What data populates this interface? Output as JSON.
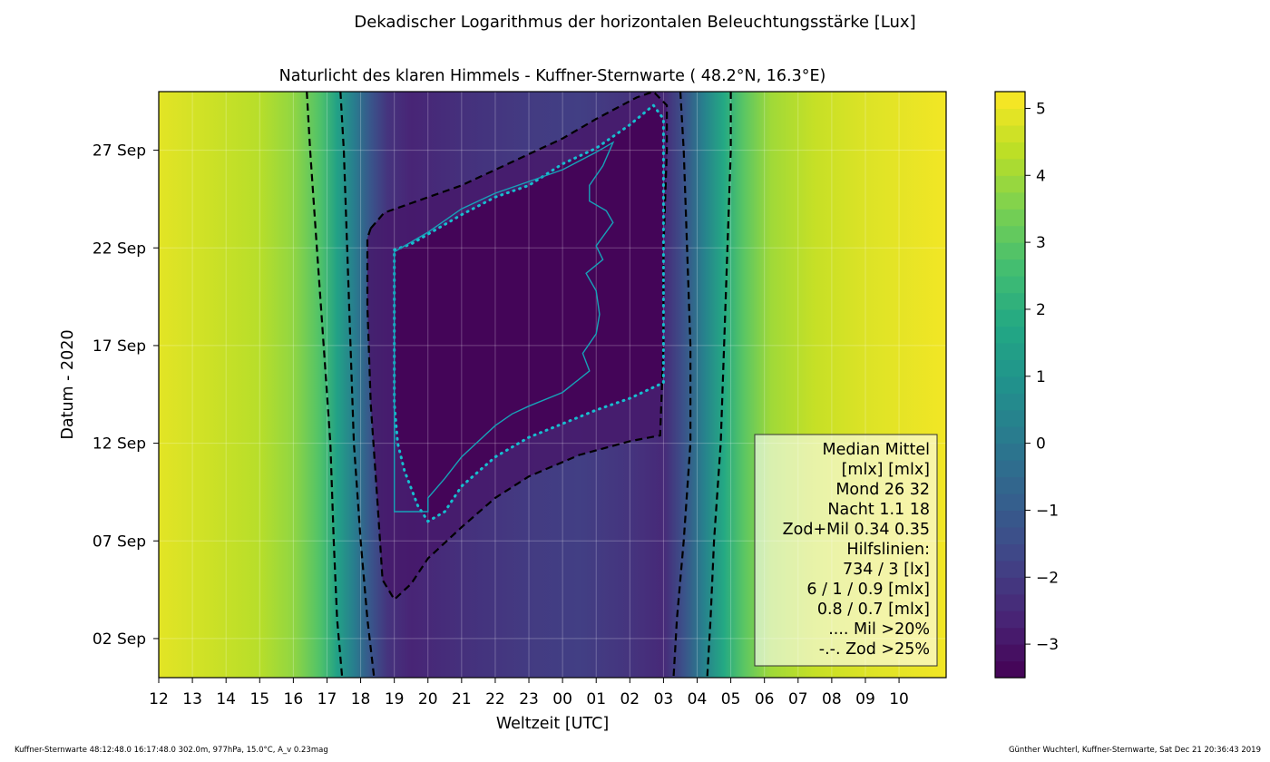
{
  "figure": {
    "suptitle": "Dekadischer Logarithmus der horizontalen Beleuchtungsstärke [Lux]",
    "footer_left": "Kuffner-Sternwarte 48:12:48.0 16:17:48.0 302.0m,  977hPa, 15.0°C, A_v 0.23mag",
    "footer_right": "Günther Wuchterl, Kuffner-Sternwarte, Sat Dec 21 20:36:43 2019"
  },
  "chart_data": {
    "type": "heatmap",
    "title": "Naturlicht des klaren Himmels - Kuffner-Sternwarte ( 48.2°N, 16.3°E)",
    "xlabel": "Weltzeit [UTC]",
    "ylabel": "Datum - 2020",
    "x_range_hours": [
      12,
      35.4
    ],
    "x_ticks": [
      {
        "label": "12",
        "h": 12
      },
      {
        "label": "13",
        "h": 13
      },
      {
        "label": "14",
        "h": 14
      },
      {
        "label": "15",
        "h": 15
      },
      {
        "label": "16",
        "h": 16
      },
      {
        "label": "17",
        "h": 17
      },
      {
        "label": "18",
        "h": 18
      },
      {
        "label": "19",
        "h": 19
      },
      {
        "label": "20",
        "h": 20
      },
      {
        "label": "21",
        "h": 21
      },
      {
        "label": "22",
        "h": 22
      },
      {
        "label": "23",
        "h": 23
      },
      {
        "label": "00",
        "h": 24
      },
      {
        "label": "01",
        "h": 25
      },
      {
        "label": "02",
        "h": 26
      },
      {
        "label": "03",
        "h": 27
      },
      {
        "label": "04",
        "h": 28
      },
      {
        "label": "05",
        "h": 29
      },
      {
        "label": "06",
        "h": 30
      },
      {
        "label": "07",
        "h": 31
      },
      {
        "label": "08",
        "h": 32
      },
      {
        "label": "09",
        "h": 33
      },
      {
        "label": "10",
        "h": 34
      }
    ],
    "y_range_day": [
      31.0,
      61.0
    ],
    "y_ticks": [
      {
        "label": "02 Sep",
        "d": 33
      },
      {
        "label": "07 Sep",
        "d": 38
      },
      {
        "label": "12 Sep",
        "d": 43
      },
      {
        "label": "17 Sep",
        "d": 48
      },
      {
        "label": "22 Sep",
        "d": 53
      },
      {
        "label": "27 Sep",
        "d": 58
      }
    ],
    "grid": true,
    "colormap": "viridis",
    "colorbar": {
      "range": [
        -3.5,
        5.25
      ],
      "ticks": [
        {
          "label": "5",
          "v": 5
        },
        {
          "label": "4",
          "v": 4
        },
        {
          "label": "3",
          "v": 3
        },
        {
          "label": "2",
          "v": 2
        },
        {
          "label": "1",
          "v": 1
        },
        {
          "label": "0",
          "v": 0
        },
        {
          "label": "−1",
          "v": -1
        },
        {
          "label": "−2",
          "v": -2
        },
        {
          "label": "−3",
          "v": -3
        }
      ]
    },
    "sunset_start_day31_h": 16.4,
    "sunset_end_day61_h": 17.5,
    "sunrise_start_day31_h": 4.9,
    "sunrise_end_day61_h": 3.5,
    "contour_lines": [
      {
        "name": "734 / 3 [lx] outer",
        "style": "dashed",
        "color": "#000000",
        "points": [
          [
            16.4,
            61
          ],
          [
            16.5,
            58
          ],
          [
            16.7,
            53
          ],
          [
            16.9,
            48
          ],
          [
            17.1,
            43
          ],
          [
            17.2,
            38
          ],
          [
            17.3,
            34
          ],
          [
            17.45,
            31
          ]
        ]
      },
      {
        "name": "734 / 3 [lx] outer (morning)",
        "style": "dashed",
        "color": "#000000",
        "points": [
          [
            29.0,
            61
          ],
          [
            29.0,
            58
          ],
          [
            28.9,
            53
          ],
          [
            28.8,
            48
          ],
          [
            28.7,
            43
          ],
          [
            28.5,
            38
          ],
          [
            28.4,
            34
          ],
          [
            28.3,
            31
          ]
        ]
      },
      {
        "name": "6 / 1 [mlx] inner",
        "style": "dashed",
        "color": "#000000",
        "points": [
          [
            17.4,
            61
          ],
          [
            17.5,
            58
          ],
          [
            17.6,
            53
          ],
          [
            17.7,
            48
          ],
          [
            17.8,
            43
          ],
          [
            18.0,
            38
          ],
          [
            18.2,
            34
          ],
          [
            18.4,
            31
          ]
        ]
      },
      {
        "name": "6 / 1 [mlx] inner (morning)",
        "style": "dashed",
        "color": "#000000",
        "points": [
          [
            27.5,
            61
          ],
          [
            27.6,
            58
          ],
          [
            27.7,
            53
          ],
          [
            27.8,
            48
          ],
          [
            27.8,
            43
          ],
          [
            27.6,
            38
          ],
          [
            27.4,
            34
          ],
          [
            27.3,
            31
          ]
        ]
      },
      {
        "name": "0.9 [mlx] night boundary",
        "style": "dashed",
        "color": "#000000",
        "points": [
          [
            18.3,
            54.0
          ],
          [
            18.7,
            54.8
          ],
          [
            21.0,
            56.2
          ],
          [
            23.0,
            57.8
          ],
          [
            24.0,
            58.6
          ],
          [
            25.0,
            59.6
          ],
          [
            26.2,
            60.7
          ],
          [
            26.7,
            61.0
          ],
          [
            27.1,
            60.3
          ],
          [
            27.1,
            58
          ],
          [
            27.0,
            53
          ],
          [
            27.0,
            48
          ],
          [
            26.9,
            43.4
          ],
          [
            26.0,
            43.1
          ],
          [
            24.5,
            42.4
          ],
          [
            23.0,
            41.3
          ],
          [
            22.0,
            40.2
          ],
          [
            21.0,
            38.7
          ],
          [
            20.0,
            37.1
          ],
          [
            19.5,
            35.8
          ],
          [
            19.0,
            35.0
          ],
          [
            18.65,
            36.0
          ],
          [
            18.5,
            40
          ],
          [
            18.3,
            45
          ],
          [
            18.2,
            50
          ],
          [
            18.2,
            53.5
          ],
          [
            18.3,
            54.0
          ]
        ]
      },
      {
        "name": ".... Mil >20%",
        "style": "dotted",
        "color": "#17becf",
        "points": [
          [
            19.0,
            52.9
          ],
          [
            19.5,
            53.2
          ],
          [
            20.0,
            53.7
          ],
          [
            21.0,
            54.7
          ],
          [
            22.0,
            55.6
          ],
          [
            23.0,
            56.2
          ],
          [
            24.0,
            57.3
          ],
          [
            25.0,
            58.1
          ],
          [
            26.0,
            59.3
          ],
          [
            26.7,
            60.3
          ],
          [
            27.0,
            59.6
          ],
          [
            27.0,
            57
          ],
          [
            27.0,
            55
          ],
          [
            27.0,
            51
          ],
          [
            27.0,
            48
          ],
          [
            27.0,
            46.1
          ],
          [
            26.0,
            45.3
          ],
          [
            25.0,
            44.7
          ],
          [
            24.0,
            44.0
          ],
          [
            23.0,
            43.3
          ],
          [
            22.0,
            42.3
          ],
          [
            21.0,
            40.8
          ],
          [
            20.5,
            39.5
          ],
          [
            20.0,
            39.0
          ],
          [
            19.7,
            39.8
          ],
          [
            19.3,
            41.6
          ],
          [
            19.1,
            43.0
          ],
          [
            19.0,
            45
          ],
          [
            19.0,
            50
          ],
          [
            19.0,
            52.9
          ]
        ]
      },
      {
        "name": "night core (cyan)",
        "style": "solid",
        "color": "#17a2b8",
        "points": [
          [
            19.0,
            52.8
          ],
          [
            20.0,
            53.8
          ],
          [
            21.0,
            55.0
          ],
          [
            22.0,
            55.8
          ],
          [
            23.0,
            56.4
          ],
          [
            24.0,
            57.0
          ],
          [
            25.0,
            57.9
          ],
          [
            25.5,
            58.4
          ],
          [
            25.2,
            57.2
          ],
          [
            24.8,
            56.2
          ],
          [
            24.8,
            55.4
          ],
          [
            25.3,
            54.9
          ],
          [
            25.5,
            54.3
          ],
          [
            25.0,
            53.1
          ],
          [
            25.2,
            52.4
          ],
          [
            24.7,
            51.7
          ],
          [
            25.0,
            50.8
          ],
          [
            25.1,
            49.6
          ],
          [
            25.0,
            48.6
          ],
          [
            24.6,
            47.6
          ],
          [
            24.8,
            46.7
          ],
          [
            24.0,
            45.6
          ],
          [
            23.0,
            44.9
          ],
          [
            22.5,
            44.5
          ],
          [
            22.0,
            43.9
          ],
          [
            21.5,
            43.1
          ],
          [
            21.0,
            42.3
          ],
          [
            20.5,
            41.2
          ],
          [
            20.0,
            40.2
          ],
          [
            20.0,
            39.5
          ],
          [
            19.0,
            39.5
          ],
          [
            19.0,
            45
          ],
          [
            19.0,
            52.8
          ]
        ]
      }
    ],
    "legend": {
      "position": "lower-right",
      "lines": [
        "Median Mittel",
        "[mlx]  [mlx]",
        "Mond   26  32",
        "Nacht 1.1  18",
        "Zod+Mil 0.34  0.35",
        "Hilfslinien:",
        "734 / 3  [lx]",
        "6 /  1 / 0.9 [mlx]",
        "0.8 / 0.7 [mlx]",
        ".... Mil >20%",
        "-.-. Zod >25%"
      ]
    }
  }
}
